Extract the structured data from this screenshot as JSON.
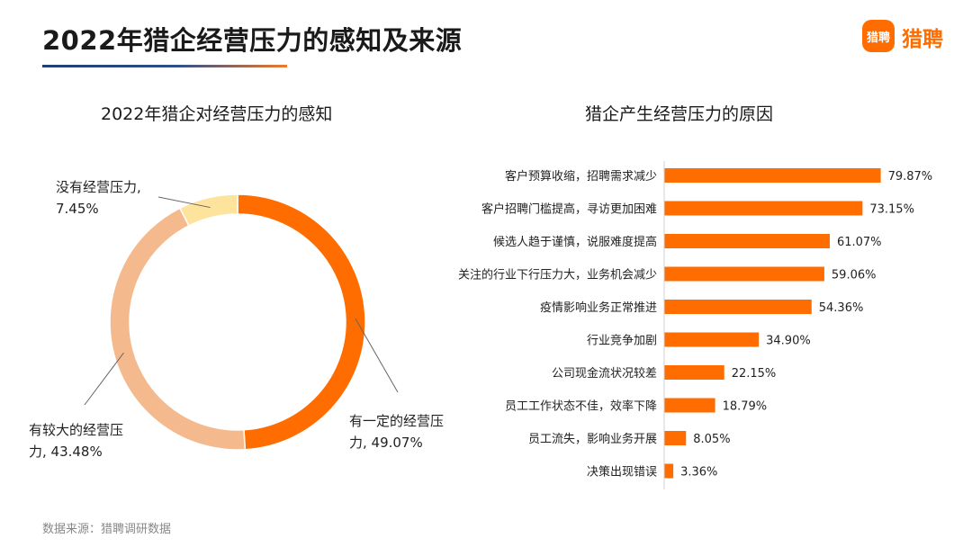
{
  "header": {
    "title": "2022年猎企经营压力的感知及来源",
    "logo_mark": "猎聘",
    "logo_text": "猎聘"
  },
  "left_chart": {
    "subtitle": "2022年猎企对经营压力的感知",
    "labels": {
      "none_line1": "没有经营压力,",
      "none_line2": "7.45%",
      "large_line1": "有较大的经营压",
      "large_line2": "力, 43.48%",
      "some_line1": "有一定的经营压",
      "some_line2": "力, 49.07%"
    }
  },
  "right_chart": {
    "subtitle": "猎企产生经营压力的原因"
  },
  "footer": {
    "source": "数据来源：猎聘调研数据"
  },
  "chart_data": [
    {
      "type": "pie",
      "title": "2022年猎企对经营压力的感知",
      "donut": true,
      "slices": [
        {
          "label": "有一定的经营压力",
          "value": 49.07,
          "color": "#ff6c00"
        },
        {
          "label": "有较大的经营压力",
          "value": 43.48,
          "color": "#f5b98e"
        },
        {
          "label": "没有经营压力",
          "value": 7.45,
          "color": "#fde39c"
        }
      ]
    },
    {
      "type": "bar",
      "orientation": "horizontal",
      "title": "猎企产生经营压力的原因",
      "categories": [
        "客户预算收缩，招聘需求减少",
        "客户招聘门槛提高，寻访更加困难",
        "候选人趋于谨慎，说服难度提高",
        "关注的行业下行压力大，业务机会减少",
        "疫情影响业务正常推进",
        "行业竞争加剧",
        "公司现金流状况较差",
        "员工工作状态不佳，效率下降",
        "员工流失，影响业务开展",
        "决策出现错误"
      ],
      "values": [
        79.87,
        73.15,
        61.07,
        59.06,
        54.36,
        34.9,
        22.15,
        18.79,
        8.05,
        3.36
      ],
      "value_labels": [
        "79.87%",
        "73.15%",
        "61.07%",
        "59.06%",
        "54.36%",
        "34.90%",
        "22.15%",
        "18.79%",
        "8.05%",
        "3.36%"
      ],
      "color": "#ff6c00",
      "grid": false
    }
  ]
}
